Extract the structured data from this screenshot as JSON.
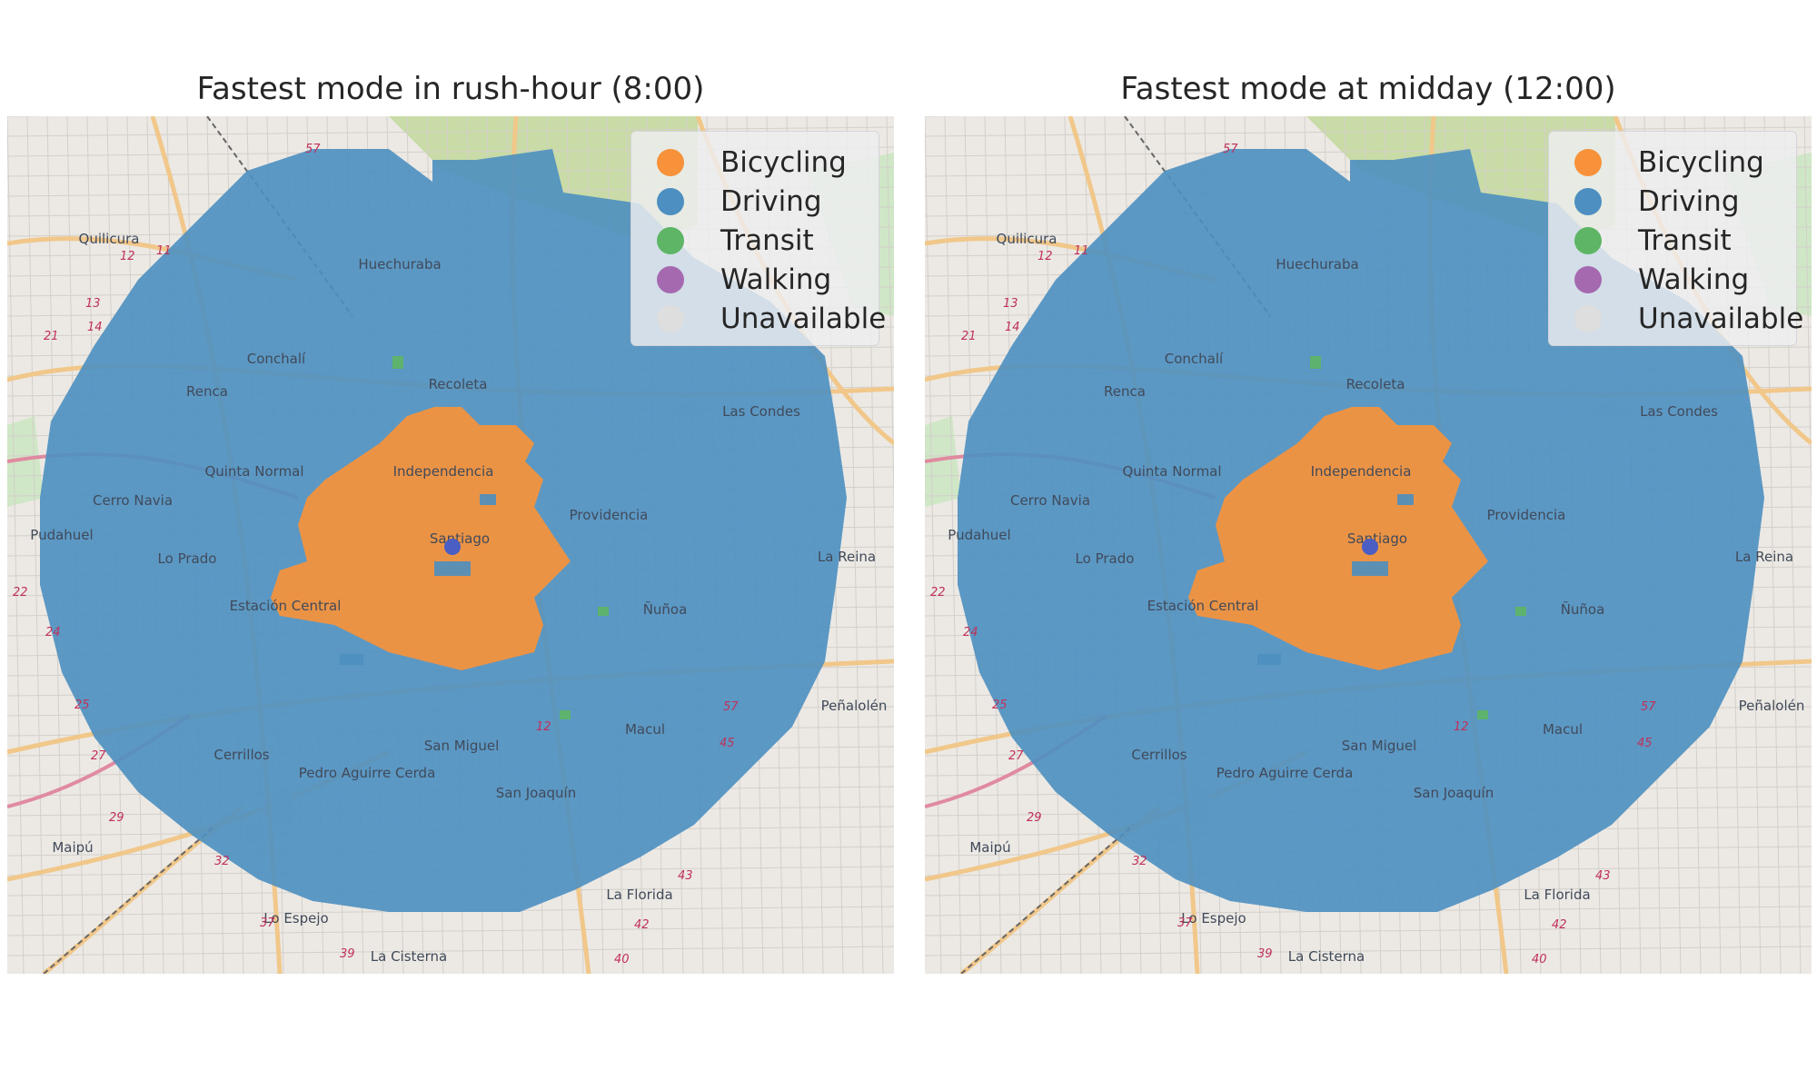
{
  "panels": [
    {
      "title": "Fastest mode in rush-hour (8:00)"
    },
    {
      "title": "Fastest mode at midday (12:00)"
    }
  ],
  "legend": [
    {
      "label": "Bicycling",
      "color": "#f7923a"
    },
    {
      "label": "Driving",
      "color": "#4c8fc0"
    },
    {
      "label": "Transit",
      "color": "#5db565"
    },
    {
      "label": "Walking",
      "color": "#a569b0"
    },
    {
      "label": "Unavailable",
      "color": "#dedede"
    }
  ],
  "map": {
    "place_labels": [
      "Quilicura",
      "Huechuraba",
      "Conchalí",
      "Recoleta",
      "Renca",
      "Las Condes",
      "Quinta Normal",
      "Independencia",
      "Cerro Navia",
      "Providencia",
      "Pudahuel",
      "Santiago",
      "Lo Prado",
      "La Reina",
      "Estación Central",
      "Ñuñoa",
      "Peñalolén",
      "Macul",
      "San Miguel",
      "Cerrillos",
      "Pedro Aguirre Cerda",
      "San Joaquín",
      "Maipú",
      "La Florida",
      "Lo Espejo",
      "La Cisterna"
    ],
    "road_labels": [
      "57",
      "12",
      "11",
      "13",
      "14",
      "21",
      "22",
      "24",
      "25",
      "27",
      "29",
      "32",
      "37",
      "39",
      "40",
      "42",
      "43",
      "45"
    ],
    "origin_marker_color": "#4a5ec4"
  }
}
